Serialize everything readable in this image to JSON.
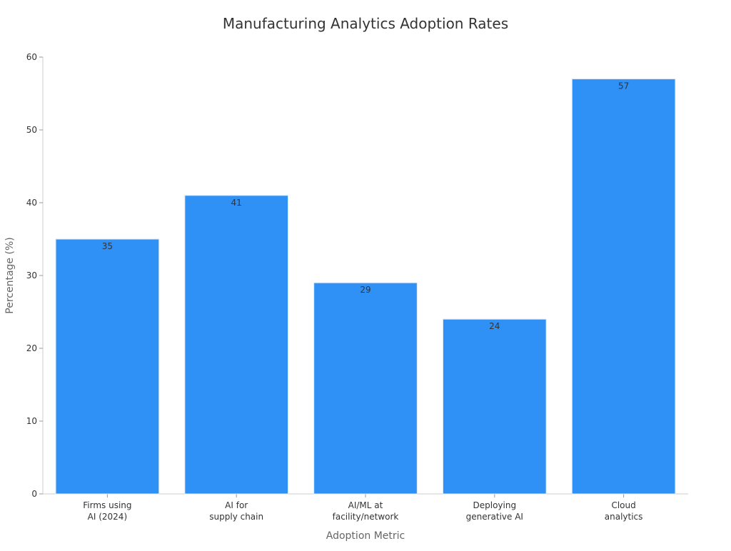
{
  "chart_data": {
    "type": "bar",
    "title": "Manufacturing Analytics Adoption Rates",
    "xlabel": "Adoption Metric",
    "ylabel": "Percentage (%)",
    "categories": [
      [
        "Firms using",
        "AI (2024)"
      ],
      [
        "AI for",
        "supply chain"
      ],
      [
        "AI/ML at",
        "facility/network"
      ],
      [
        "Deploying",
        "generative AI"
      ],
      [
        "Cloud",
        "analytics"
      ]
    ],
    "values": [
      35,
      41,
      29,
      24,
      57
    ],
    "ylim": [
      0,
      60
    ],
    "yticks": [
      0,
      10,
      20,
      30,
      40,
      50,
      60
    ],
    "grid": false,
    "bar_color": "#2f90f6",
    "bar_edge_color": "#dde8f5"
  }
}
